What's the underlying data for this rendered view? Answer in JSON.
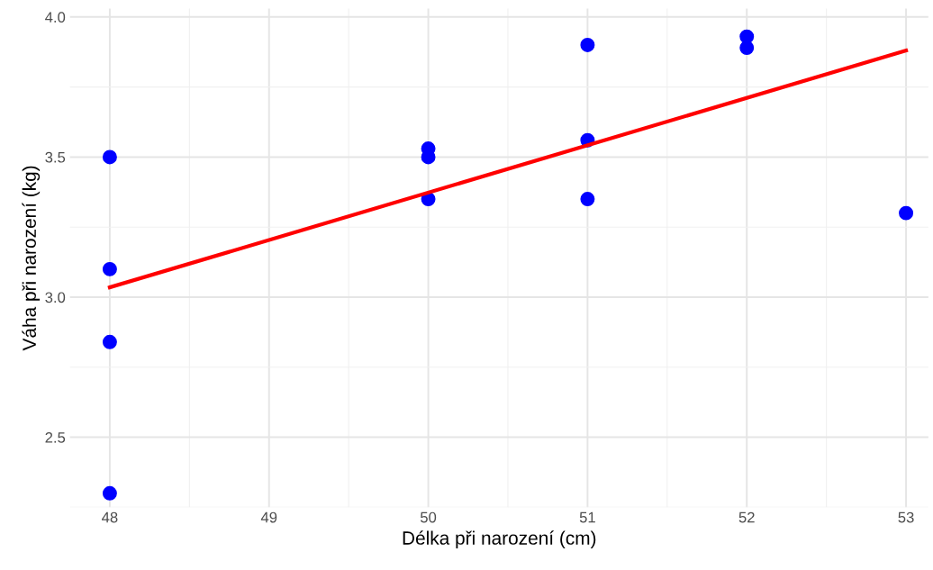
{
  "chart_data": {
    "type": "scatter",
    "xlabel": "Délka při narození (cm)",
    "ylabel": "Váha při narození (kg)",
    "xlim": [
      47.75,
      53.14
    ],
    "ylim": [
      2.25,
      4.03
    ],
    "xticks": [
      48,
      49,
      50,
      51,
      52,
      53
    ],
    "yticks": [
      2.5,
      {
        "value": 3.0,
        "label": "3.0"
      },
      3.5,
      {
        "value": 4.0,
        "label": "4.0"
      }
    ],
    "grid": true,
    "series": [
      {
        "marker": "circle",
        "color": "#0000ff",
        "x": [
          48,
          48,
          48,
          48,
          50,
          50,
          50,
          51,
          51,
          51,
          52,
          52,
          53
        ],
        "values": [
          3.5,
          3.1,
          2.84,
          2.3,
          3.53,
          3.5,
          3.35,
          3.9,
          3.56,
          3.35,
          3.93,
          3.89,
          3.3
        ]
      },
      {
        "type": "line",
        "color": "#ff0000",
        "x": [
          48,
          53
        ],
        "values": [
          3.035,
          3.88
        ],
        "line_style": "solid"
      }
    ]
  }
}
